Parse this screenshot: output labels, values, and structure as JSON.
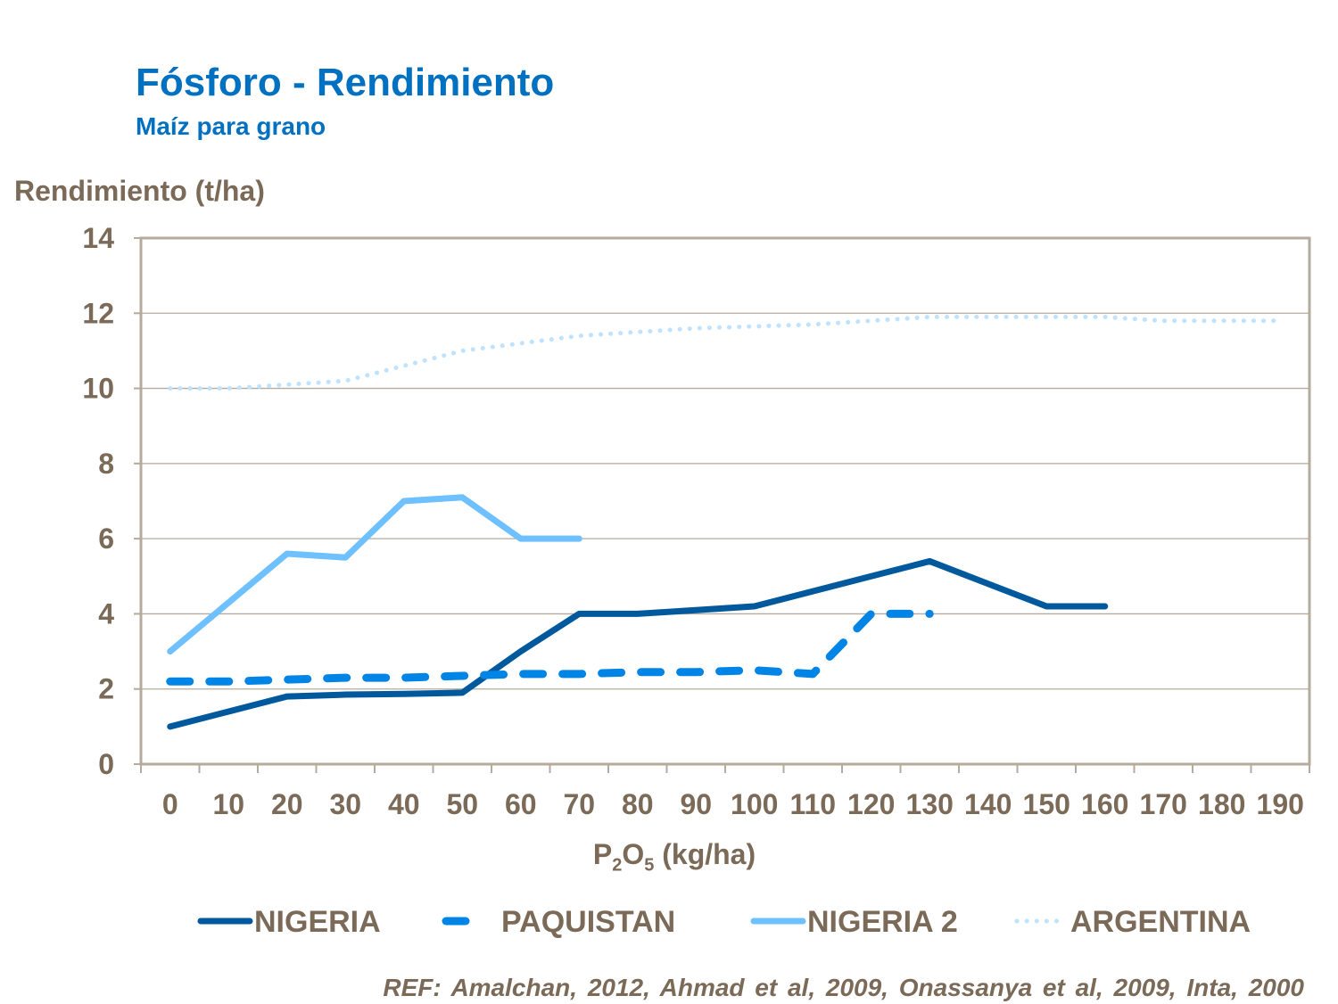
{
  "chart_data": {
    "type": "line",
    "title": "Fósforo - Rendimiento",
    "subtitle": "Maíz para grano",
    "ylabel": "Rendimiento (t/ha)",
    "xlabel_main": "P",
    "xlabel_sub1": "2",
    "xlabel_mid": "O",
    "xlabel_sub2": "5",
    "xlabel_tail": " (kg/ha)",
    "categories": [
      "0",
      "10",
      "20",
      "30",
      "40",
      "50",
      "60",
      "70",
      "80",
      "90",
      "100",
      "110",
      "120",
      "130",
      "140",
      "150",
      "160",
      "170",
      "180",
      "190"
    ],
    "ylim": [
      0,
      14
    ],
    "yticks": [
      "0",
      "2",
      "4",
      "6",
      "8",
      "10",
      "12",
      "14"
    ],
    "grid": true,
    "legend_position": "bottom",
    "series": [
      {
        "name": "NIGERIA",
        "color": "#00599c",
        "style": "solid",
        "values": [
          1.0,
          1.4,
          1.8,
          1.85,
          1.87,
          1.9,
          3.0,
          4.0,
          4.0,
          4.1,
          4.2,
          4.6,
          5.0,
          5.4,
          4.8,
          4.2,
          4.2,
          null,
          null,
          null
        ]
      },
      {
        "name": "PAQUISTAN",
        "color": "#0085e6",
        "style": "dashed",
        "values": [
          2.2,
          2.2,
          2.25,
          2.3,
          2.3,
          2.35,
          2.4,
          2.4,
          2.45,
          2.45,
          2.5,
          2.4,
          4.0,
          4.0,
          null,
          null,
          null,
          null,
          null,
          null
        ]
      },
      {
        "name": "NIGERIA 2",
        "color": "#6ec0ff",
        "style": "solid",
        "values": [
          3.0,
          4.3,
          5.6,
          5.5,
          7.0,
          7.1,
          6.0,
          6.0,
          null,
          null,
          null,
          null,
          null,
          null,
          null,
          null,
          null,
          null,
          null,
          null
        ]
      },
      {
        "name": "ARGENTINA",
        "color": "#bfe3ff",
        "style": "dotted",
        "values": [
          10.0,
          10.0,
          10.1,
          10.2,
          10.6,
          11.0,
          11.2,
          11.4,
          11.5,
          11.6,
          11.65,
          11.7,
          11.8,
          11.9,
          11.9,
          11.9,
          11.9,
          11.8,
          11.8,
          11.8
        ]
      }
    ],
    "reference": "REF: Amalchan, 2012, Ahmad et al, 2009, Onassanya et al, 2009, Inta, 2000"
  }
}
